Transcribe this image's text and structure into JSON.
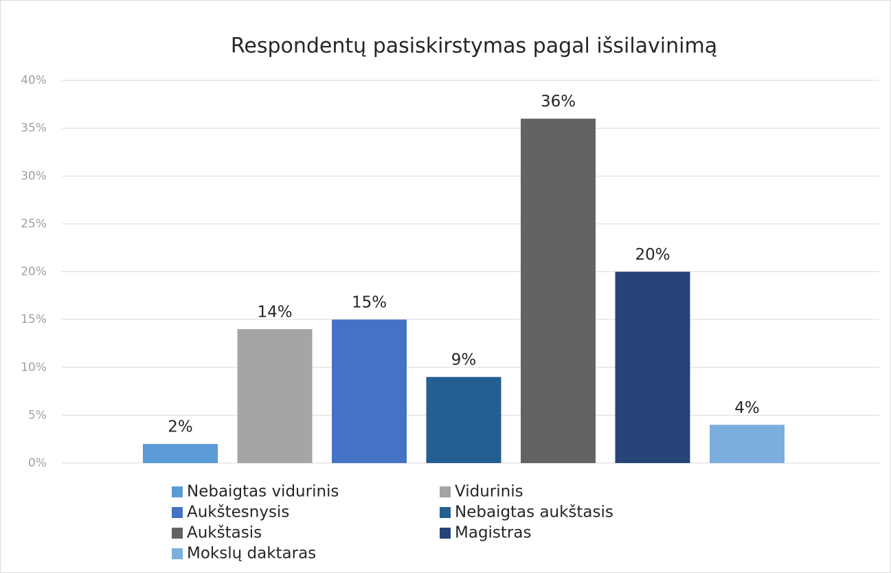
{
  "chart_data": {
    "type": "bar",
    "title": "Respondentų pasiskirstymas pagal išsilavinimą",
    "series": [
      {
        "name": "Nebaigtas vidurinis",
        "color": "#5b9bd5",
        "values": [
          2
        ],
        "value_labels": [
          "2%"
        ]
      },
      {
        "name": "Vidurinis",
        "color": "#a5a5a5",
        "values": [
          14
        ],
        "value_labels": [
          "14%"
        ]
      },
      {
        "name": "Aukštesnysis",
        "color": "#4472c4",
        "values": [
          15
        ],
        "value_labels": [
          "15%"
        ]
      },
      {
        "name": "Nebaigtas aukštasis",
        "color": "#255e91",
        "values": [
          9
        ],
        "value_labels": [
          "9%"
        ]
      },
      {
        "name": "Aukštasis",
        "color": "#636363",
        "values": [
          36
        ],
        "value_labels": [
          "36%"
        ]
      },
      {
        "name": "Magistras",
        "color": "#264478",
        "values": [
          20
        ],
        "value_labels": [
          "20%"
        ]
      },
      {
        "name": "Mokslų daktaras",
        "color": "#7cafdd",
        "values": [
          4
        ],
        "value_labels": [
          "4%"
        ]
      }
    ],
    "ylim": [
      0,
      40
    ],
    "yticks": [
      {
        "value": 0,
        "label": "0%"
      },
      {
        "value": 5,
        "label": "5%"
      },
      {
        "value": 10,
        "label": "10%"
      },
      {
        "value": 15,
        "label": "15%"
      },
      {
        "value": 20,
        "label": "20%"
      },
      {
        "value": 25,
        "label": "25%"
      },
      {
        "value": 30,
        "label": "30%"
      },
      {
        "value": 35,
        "label": "35%"
      },
      {
        "value": 40,
        "label": "40%"
      }
    ],
    "grid": true
  }
}
